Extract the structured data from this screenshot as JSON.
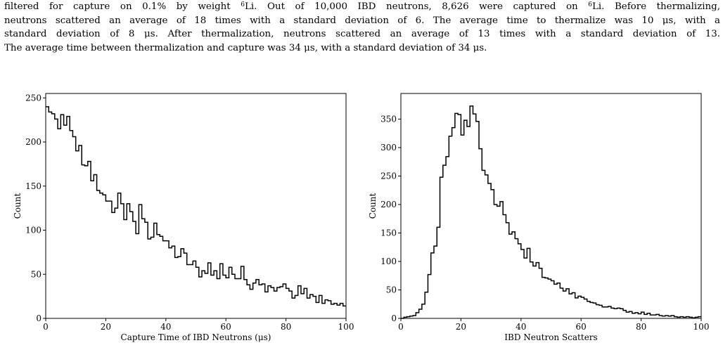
{
  "paragraph": {
    "line1": {
      "a": "filtered for capture on 0.1% by weight ",
      "sup1": "6",
      "b": "Li.  Out of 10,000 IBD neutrons, 8,626 were captured on ",
      "sup2": "6",
      "c": "Li.  Before thermalizing,"
    },
    "line2": "neutrons scattered an average of 18 times with a standard deviation of 6.  The average time to thermalize was 10 μs, with a",
    "line3": "standard deviation of 8 μs.  After thermalization, neutrons scattered an average of 13 times with a standard deviation of 13.",
    "line4": "The average time between thermalization and capture was 34 μs, with a standard deviation of 34 μs."
  },
  "chart_data": [
    {
      "type": "histogram",
      "xlabel": "Capture Time of IBD Neutrons (μs)",
      "ylabel": "Count",
      "xlim": [
        0,
        100
      ],
      "ylim": [
        0,
        255
      ],
      "xticks": [
        "0",
        "20",
        "40",
        "60",
        "80",
        "100"
      ],
      "yticks": [
        "0",
        "50",
        "100",
        "150",
        "200",
        "250"
      ],
      "bin_width": 1,
      "values": [
        240,
        234,
        232,
        226,
        215,
        231,
        219,
        229,
        213,
        206,
        190,
        196,
        174,
        173,
        178,
        156,
        163,
        145,
        142,
        140,
        133,
        133,
        120,
        125,
        142,
        130,
        112,
        130,
        121,
        110,
        96,
        129,
        113,
        109,
        90,
        92,
        108,
        95,
        93,
        88,
        88,
        80,
        82,
        69,
        70,
        79,
        74,
        61,
        61,
        65,
        58,
        47,
        54,
        51,
        63,
        49,
        54,
        45,
        62,
        49,
        46,
        58,
        50,
        45,
        45,
        59,
        44,
        38,
        33,
        40,
        44,
        38,
        39,
        30,
        37,
        35,
        31,
        35,
        36,
        39,
        34,
        31,
        23,
        26,
        37,
        28,
        34,
        23,
        27,
        25,
        18,
        26,
        17,
        21,
        20,
        16,
        17,
        15,
        17,
        14
      ]
    },
    {
      "type": "histogram",
      "xlabel": "IBD Neutron Scatters",
      "ylabel": "Count",
      "xlim": [
        0,
        100
      ],
      "ylim": [
        0,
        395
      ],
      "xticks": [
        "0",
        "20",
        "40",
        "60",
        "80",
        "100"
      ],
      "yticks": [
        "0",
        "50",
        "100",
        "150",
        "200",
        "250",
        "300",
        "350"
      ],
      "bin_width": 1,
      "values": [
        0,
        2,
        3,
        4,
        5,
        10,
        16,
        25,
        46,
        77,
        115,
        127,
        160,
        248,
        269,
        284,
        320,
        335,
        360,
        358,
        322,
        348,
        337,
        373,
        359,
        346,
        298,
        260,
        252,
        237,
        226,
        200,
        197,
        205,
        182,
        168,
        148,
        152,
        140,
        131,
        121,
        106,
        123,
        99,
        92,
        98,
        88,
        72,
        71,
        69,
        66,
        60,
        62,
        53,
        48,
        52,
        43,
        45,
        36,
        39,
        37,
        34,
        30,
        28,
        27,
        24,
        23,
        20,
        20,
        21,
        18,
        17,
        18,
        17,
        14,
        11,
        12,
        9,
        10,
        8,
        11,
        7,
        9,
        6,
        6,
        7,
        5,
        4,
        5,
        4,
        5,
        3,
        2,
        3,
        2,
        3,
        2,
        1,
        2,
        3
      ]
    }
  ]
}
